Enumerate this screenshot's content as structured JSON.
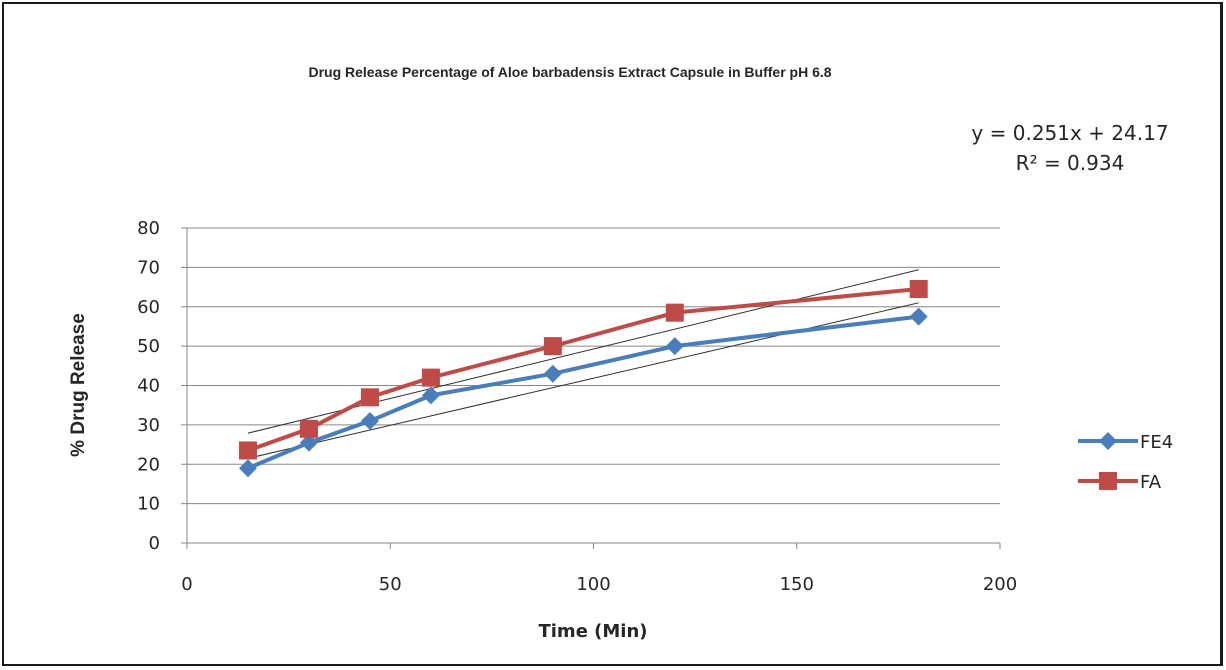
{
  "chart_data": {
    "type": "line",
    "title": "Drug Release Percentage of Aloe barbadensis Extract Capsule in Buffer pH 6.8",
    "xlabel": "Time (Min)",
    "ylabel": "% Drug  Release",
    "xlim": [
      0,
      200
    ],
    "ylim": [
      0,
      80
    ],
    "x_ticks": [
      0,
      50,
      100,
      150,
      200
    ],
    "y_ticks": [
      0,
      10,
      20,
      30,
      40,
      50,
      60,
      70,
      80
    ],
    "grid": "horizontal",
    "legend_position": "right",
    "series": [
      {
        "name": "FE4",
        "color": "#4a7ebb",
        "marker": "diamond",
        "x": [
          15,
          30,
          45,
          60,
          90,
          120,
          180
        ],
        "y": [
          19,
          25.5,
          31,
          37.5,
          43,
          50,
          57.5
        ],
        "trendline": {
          "x": [
            15,
            180
          ],
          "y": [
            21.5,
            61
          ]
        }
      },
      {
        "name": "FA",
        "color": "#be4b48",
        "marker": "square",
        "x": [
          15,
          30,
          45,
          60,
          90,
          120,
          180
        ],
        "y": [
          23.5,
          29,
          37,
          42,
          50,
          58.5,
          64.5
        ],
        "trendline": {
          "x": [
            15,
            180
          ],
          "y": [
            27.9,
            69.4
          ]
        }
      }
    ],
    "annotations": {
      "equation": "y = 0.251x + 24.17",
      "r_squared": "R² = 0.934"
    }
  }
}
